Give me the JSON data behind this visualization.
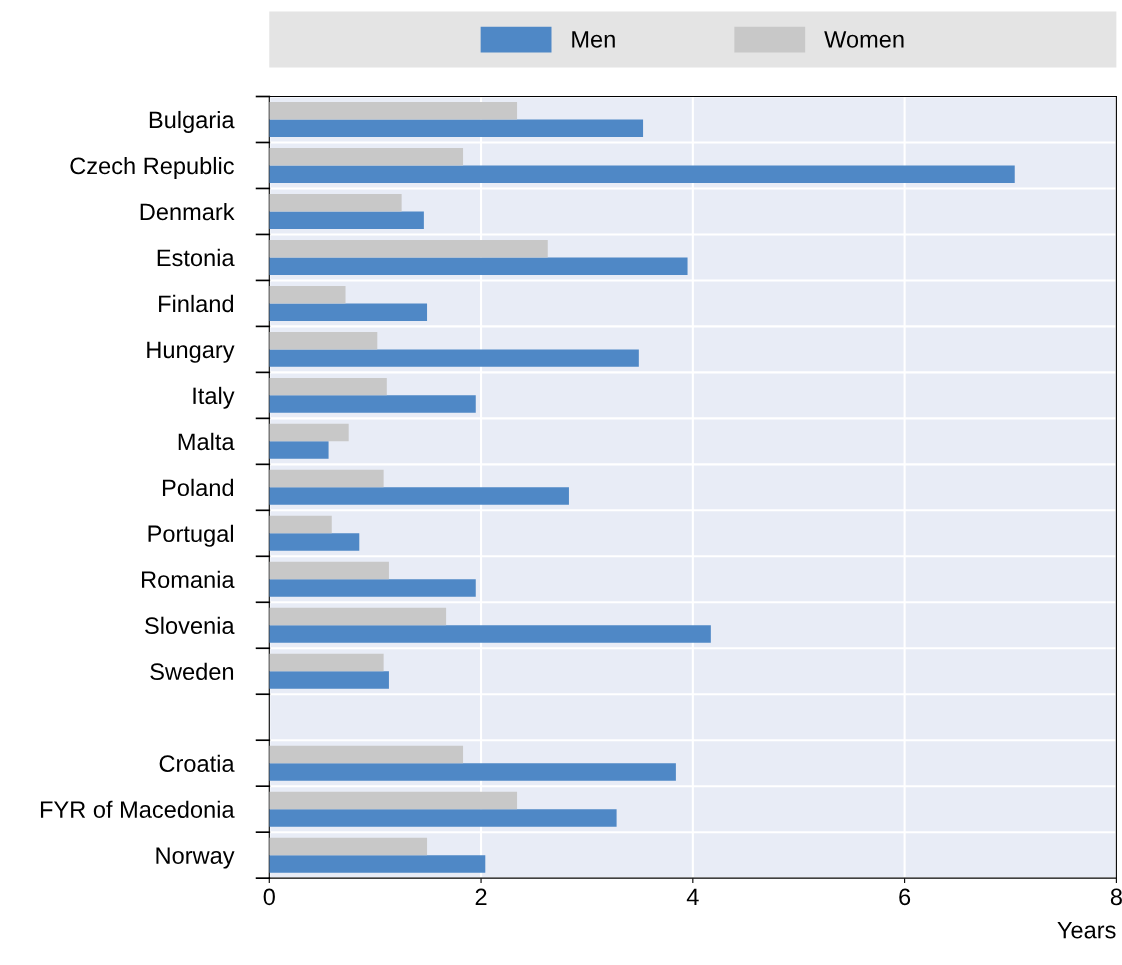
{
  "chart_data": {
    "type": "bar",
    "orientation": "horizontal",
    "xlabel": "Years",
    "categories": [
      "Bulgaria",
      "Czech Republic",
      "Denmark",
      "Estonia",
      "Finland",
      "Hungary",
      "Italy",
      "Malta",
      "Poland",
      "Portugal",
      "Romania",
      "Slovenia",
      "Sweden",
      null,
      "Croatia",
      "FYR of Macedonia",
      "Norway"
    ],
    "series": [
      {
        "name": "Men",
        "color": "#4f88c6",
        "values": [
          3.53,
          7.04,
          1.46,
          3.95,
          1.49,
          3.49,
          1.95,
          0.56,
          2.83,
          0.85,
          1.95,
          4.17,
          1.13,
          null,
          3.84,
          3.28,
          2.04
        ]
      },
      {
        "name": "Women",
        "color": "#c8c8c8",
        "values": [
          2.34,
          1.83,
          1.25,
          2.63,
          0.72,
          1.02,
          1.11,
          0.75,
          1.08,
          0.59,
          1.13,
          1.67,
          1.08,
          null,
          1.83,
          2.34,
          1.49
        ]
      }
    ],
    "xlim": [
      0,
      8
    ],
    "xticks": [
      0,
      2,
      4,
      6,
      8
    ],
    "grid": true,
    "legend": "top"
  }
}
